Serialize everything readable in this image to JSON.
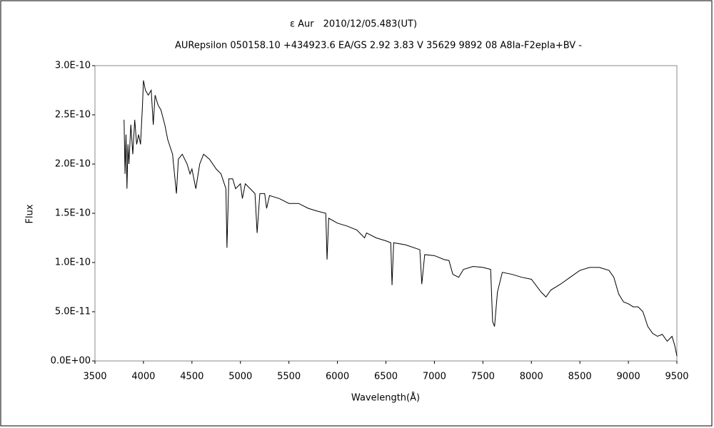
{
  "chart_data": {
    "type": "line",
    "title": "ε Aur　2010/12/05.483(UT)",
    "subtitle": "AURepsilon 050158.10 +434923.6 EA/GS 2.92 3.83 V 35629 9892 08 A8Ia-F2epIa+BV -",
    "xlabel": "Wavelength(Å)",
    "ylabel": "Flux",
    "x": [
      3800,
      3810,
      3820,
      3830,
      3840,
      3850,
      3870,
      3890,
      3910,
      3930,
      3950,
      3970,
      3990,
      4000,
      4020,
      4050,
      4080,
      4101,
      4120,
      4150,
      4180,
      4220,
      4250,
      4300,
      4320,
      4340,
      4360,
      4400,
      4450,
      4480,
      4500,
      4540,
      4580,
      4620,
      4680,
      4750,
      4800,
      4850,
      4861,
      4880,
      4920,
      4950,
      5000,
      5020,
      5050,
      5100,
      5150,
      5172,
      5200,
      5250,
      5270,
      5300,
      5400,
      5500,
      5600,
      5700,
      5800,
      5880,
      5893,
      5910,
      6000,
      6100,
      6200,
      6280,
      6300,
      6400,
      6500,
      6550,
      6563,
      6580,
      6700,
      6850,
      6870,
      6900,
      7000,
      7100,
      7150,
      7190,
      7250,
      7300,
      7400,
      7500,
      7580,
      7600,
      7620,
      7650,
      7700,
      7800,
      7900,
      8000,
      8100,
      8150,
      8200,
      8300,
      8400,
      8500,
      8600,
      8700,
      8800,
      8850,
      8900,
      8950,
      9000,
      9050,
      9100,
      9150,
      9200,
      9250,
      9300,
      9350,
      9400,
      9450,
      9480,
      9500
    ],
    "series": [
      {
        "name": "Flux",
        "color": "#000000",
        "values": [
          2.45e-10,
          1.9e-10,
          2.3e-10,
          1.75e-10,
          2.2e-10,
          2e-10,
          2.4e-10,
          2.1e-10,
          2.45e-10,
          2.2e-10,
          2.3e-10,
          2.2e-10,
          2.6e-10,
          2.85e-10,
          2.75e-10,
          2.7e-10,
          2.75e-10,
          2.4e-10,
          2.7e-10,
          2.6e-10,
          2.55e-10,
          2.4e-10,
          2.25e-10,
          2.1e-10,
          1.9e-10,
          1.7e-10,
          2.05e-10,
          2.1e-10,
          2e-10,
          1.9e-10,
          1.95e-10,
          1.75e-10,
          2e-10,
          2.1e-10,
          2.05e-10,
          1.95e-10,
          1.9e-10,
          1.75e-10,
          1.15e-10,
          1.85e-10,
          1.85e-10,
          1.75e-10,
          1.8e-10,
          1.65e-10,
          1.8e-10,
          1.75e-10,
          1.7e-10,
          1.3e-10,
          1.7e-10,
          1.7e-10,
          1.55e-10,
          1.68e-10,
          1.65e-10,
          1.6e-10,
          1.6e-10,
          1.55e-10,
          1.52e-10,
          1.5e-10,
          1.03e-10,
          1.45e-10,
          1.4e-10,
          1.37e-10,
          1.33e-10,
          1.25e-10,
          1.3e-10,
          1.25e-10,
          1.22e-10,
          1.2e-10,
          7.7e-11,
          1.2e-10,
          1.18e-10,
          1.13e-10,
          7.8e-11,
          1.08e-10,
          1.07e-10,
          1.03e-10,
          1.02e-10,
          8.8e-11,
          8.5e-11,
          9.3e-11,
          9.6e-11,
          9.5e-11,
          9.3e-11,
          4e-11,
          3.5e-11,
          7e-11,
          9e-11,
          8.8e-11,
          8.5e-11,
          8.3e-11,
          7e-11,
          6.5e-11,
          7.2e-11,
          7.8e-11,
          8.5e-11,
          9.2e-11,
          9.5e-11,
          9.5e-11,
          9.2e-11,
          8.5e-11,
          6.8e-11,
          6e-11,
          5.8e-11,
          5.5e-11,
          5.5e-11,
          5e-11,
          3.5e-11,
          2.8e-11,
          2.5e-11,
          2.7e-11,
          2e-11,
          2.5e-11,
          1.5e-11,
          5e-12
        ]
      }
    ],
    "xlim": [
      3500,
      9500
    ],
    "xticks": [
      3500,
      4000,
      4500,
      5000,
      5500,
      6000,
      6500,
      7000,
      7500,
      8000,
      8500,
      9000,
      9500
    ],
    "ylim": [
      0,
      3e-10
    ],
    "yticks": [
      {
        "value": 0,
        "label": "0.0E+00"
      },
      {
        "value": 5e-11,
        "label": "5.0E-11"
      },
      {
        "value": 1e-10,
        "label": "1.0E-10"
      },
      {
        "value": 1.5e-10,
        "label": "1.5E-10"
      },
      {
        "value": 2e-10,
        "label": "2.0E-10"
      },
      {
        "value": 2.5e-10,
        "label": "2.5E-10"
      },
      {
        "value": 3e-10,
        "label": "3.0E-10"
      }
    ],
    "grid": false
  }
}
